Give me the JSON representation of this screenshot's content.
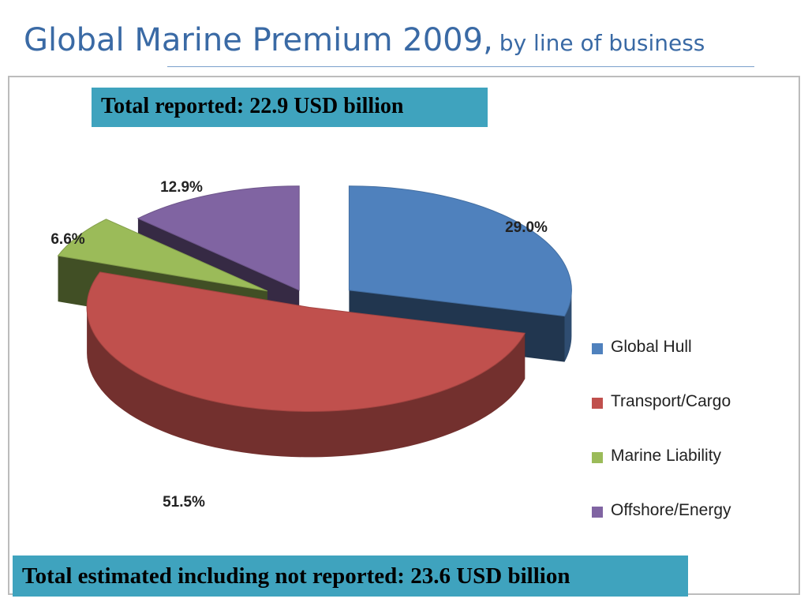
{
  "slide": {
    "title": "Global Marine Premium 2009,",
    "subtitle": "by line of business",
    "total_reported": "Total reported: 22.9 USD billion",
    "total_estimated": "Total estimated including not reported: 23.6 USD billion"
  },
  "colors": {
    "title": "#3a6aa5",
    "banner": "#3fa3be"
  },
  "chart_data": {
    "type": "pie",
    "title": "",
    "unit": "%",
    "legend_position": "right",
    "exploded": true,
    "three_d": true,
    "slices": [
      {
        "name": "Global Hull",
        "value": 29.0,
        "label": "29.0%",
        "color": "#4f81bd"
      },
      {
        "name": "Transport/Cargo",
        "value": 51.5,
        "label": "51.5%",
        "color": "#c0504d"
      },
      {
        "name": "Marine Liability",
        "value": 6.6,
        "label": "6.6%",
        "color": "#9bbb59"
      },
      {
        "name": "Offshore/Energy",
        "value": 12.9,
        "label": "12.9%",
        "color": "#8064a2"
      }
    ]
  }
}
